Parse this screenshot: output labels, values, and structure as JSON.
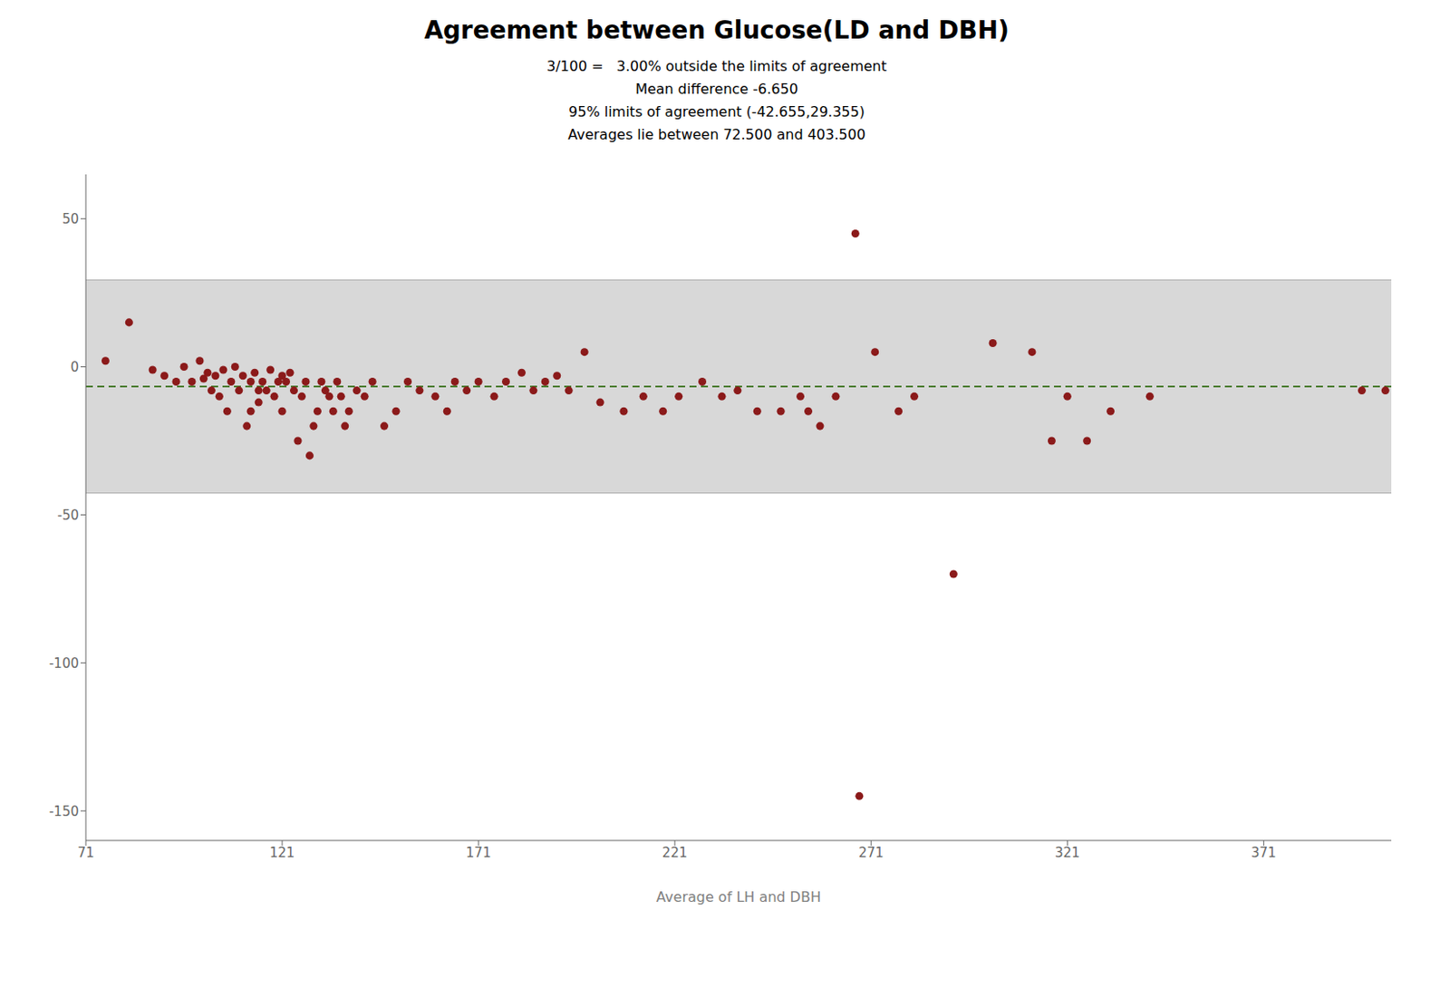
{
  "chart_data": {
    "type": "scatter",
    "title": "Agreement between Glucose(LD and DBH)",
    "subtitle": [
      "3/100 =   3.00% outside the limits of agreement",
      "Mean difference -6.650",
      "95% limits of agreement (-42.655,29.355)",
      "Averages lie between 72.500 and 403.500"
    ],
    "xlabel": "Average of LH and DBH",
    "x": [
      76,
      82,
      88,
      91,
      94,
      96,
      98,
      100,
      101,
      102,
      103,
      104,
      105,
      106,
      107,
      108,
      109,
      110,
      111,
      112,
      113,
      113,
      114,
      115,
      115,
      116,
      117,
      118,
      119,
      120,
      121,
      121,
      122,
      123,
      124,
      125,
      126,
      127,
      128,
      129,
      130,
      131,
      132,
      133,
      134,
      135,
      136,
      137,
      138,
      140,
      142,
      144,
      147,
      150,
      153,
      156,
      160,
      163,
      165,
      168,
      171,
      175,
      178,
      182,
      185,
      188,
      191,
      194,
      198,
      202,
      208,
      213,
      218,
      222,
      228,
      233,
      237,
      242,
      248,
      253,
      255,
      258,
      262,
      267,
      268,
      272,
      278,
      282,
      292,
      302,
      312,
      317,
      321,
      326,
      332,
      342,
      396,
      402
    ],
    "values": [
      2,
      15,
      -1,
      -3,
      -5,
      0,
      -5,
      2,
      -4,
      -2,
      -8,
      -3,
      -10,
      -1,
      -15,
      -5,
      0,
      -8,
      -3,
      -20,
      -15,
      -5,
      -2,
      -8,
      -12,
      -5,
      -8,
      -1,
      -10,
      -5,
      -3,
      -15,
      -5,
      -2,
      -8,
      -25,
      -10,
      -5,
      -30,
      -20,
      -15,
      -5,
      -8,
      -10,
      -15,
      -5,
      -10,
      -20,
      -15,
      -8,
      -10,
      -5,
      -20,
      -15,
      -5,
      -8,
      -10,
      -15,
      -5,
      -8,
      -5,
      -10,
      -5,
      -2,
      -8,
      -5,
      -3,
      -8,
      5,
      -12,
      -15,
      -10,
      -15,
      -10,
      -5,
      -10,
      -8,
      -15,
      -15,
      -10,
      -15,
      -20,
      -10,
      45,
      -145,
      5,
      -15,
      -10,
      -70,
      8,
      5,
      -25,
      -10,
      -25,
      -15,
      -10,
      -8,
      -8
    ],
    "color": "#8b1a1a",
    "marker": "circle",
    "xlim": [
      71,
      403.5
    ],
    "ylim": [
      -160,
      65
    ],
    "xticks": [
      71,
      121,
      171,
      221,
      271,
      321,
      371
    ],
    "yticks": [
      -150,
      -100,
      -50,
      0,
      50
    ],
    "grid": false,
    "band": {
      "y": [
        -42.655,
        29.355
      ],
      "color": "#d8d8d8"
    },
    "hlines": [
      {
        "y": 29.355,
        "color": "#aaaaaa",
        "line_style": "solid"
      },
      {
        "y": -42.655,
        "color": "#aaaaaa",
        "line_style": "solid"
      },
      {
        "y": -6.65,
        "color": "#4a7c2f",
        "line_style": "dashed"
      }
    ]
  }
}
